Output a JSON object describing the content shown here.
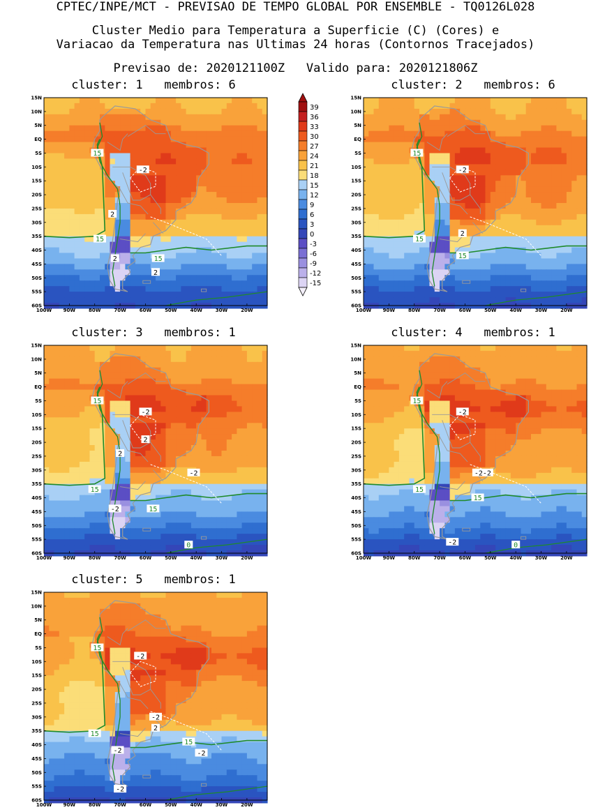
{
  "header": {
    "line1": "CPTEC/INPE/MCT - PREVISAO DE TEMPO GLOBAL POR ENSEMBLE - TQ0126L028",
    "line2": "Cluster Medio para Temperatura a Superficie (C) (Cores) e",
    "line3": "Variacao da Temperatura nas Ultimas 24 horas (Contornos Tracejados)",
    "line4": "Previsao de: 2020121100Z   Valido para: 2020121806Z"
  },
  "axes": {
    "lat_labels": [
      "15N",
      "10N",
      "5N",
      "EQ",
      "5S",
      "10S",
      "15S",
      "20S",
      "25S",
      "30S",
      "35S",
      "40S",
      "45S",
      "50S",
      "55S",
      "60S"
    ],
    "lon_labels": [
      "100W",
      "90W",
      "80W",
      "70W",
      "60W",
      "50W",
      "40W",
      "30W",
      "20W"
    ]
  },
  "colorbar": {
    "levels": [
      "39",
      "36",
      "33",
      "30",
      "27",
      "24",
      "21",
      "18",
      "15",
      "12",
      "9",
      "6",
      "3",
      "0",
      "-3",
      "-6",
      "-9",
      "-12",
      "-15"
    ],
    "colors": [
      "#a01010",
      "#c42020",
      "#e03a1a",
      "#ee5a1e",
      "#f57d2a",
      "#f9a23a",
      "#f9c24a",
      "#fbdd78",
      "#a9d0f5",
      "#78b2ee",
      "#4a8be0",
      "#2f6ed0",
      "#2a54c0",
      "#3446b8",
      "#5b4ec4",
      "#7a6fd4",
      "#9a90e0",
      "#bbb0ea",
      "#dcd4f4"
    ]
  },
  "colors": {
    "contour_green": "#1f8a2a",
    "map_outline": "#9a9a9a",
    "label_box": "#ffffff"
  },
  "panels": [
    {
      "title": "cluster: 1   membros: 6",
      "labels": [
        {
          "text": "15",
          "color": "green"
        },
        {
          "text": "-2",
          "color": "white"
        },
        {
          "text": "2",
          "color": "white"
        },
        {
          "text": "15",
          "color": "green"
        },
        {
          "text": "2",
          "color": "white"
        },
        {
          "text": "15",
          "color": "green"
        },
        {
          "text": "2",
          "color": "white"
        }
      ]
    },
    {
      "title": "cluster: 2   membros: 6",
      "labels": [
        {
          "text": "15",
          "color": "green"
        },
        {
          "text": "-2",
          "color": "white"
        },
        {
          "text": "15",
          "color": "green"
        },
        {
          "text": "2",
          "color": "white"
        },
        {
          "text": "15",
          "color": "green"
        }
      ]
    },
    {
      "title": "cluster: 3   membros: 1",
      "labels": [
        {
          "text": "15",
          "color": "green"
        },
        {
          "text": "-2",
          "color": "white"
        },
        {
          "text": "2",
          "color": "white"
        },
        {
          "text": "2",
          "color": "white"
        },
        {
          "text": "-2",
          "color": "white"
        },
        {
          "text": "15",
          "color": "green"
        },
        {
          "text": "-2",
          "color": "white"
        },
        {
          "text": "15",
          "color": "green"
        },
        {
          "text": "0",
          "color": "green"
        }
      ]
    },
    {
      "title": "cluster: 4   membros: 1",
      "labels": [
        {
          "text": "15",
          "color": "green"
        },
        {
          "text": "-2",
          "color": "white"
        },
        {
          "text": "15",
          "color": "green"
        },
        {
          "text": "-2-2",
          "color": "white"
        },
        {
          "text": "15",
          "color": "green"
        },
        {
          "text": "-2",
          "color": "white"
        },
        {
          "text": "0",
          "color": "green"
        }
      ]
    },
    {
      "title": "cluster: 5   membros: 1",
      "labels": [
        {
          "text": "15",
          "color": "green"
        },
        {
          "text": "-2",
          "color": "white"
        },
        {
          "text": "15",
          "color": "green"
        },
        {
          "text": "-2",
          "color": "white"
        },
        {
          "text": "2",
          "color": "white"
        },
        {
          "text": "15",
          "color": "green"
        },
        {
          "text": "-2",
          "color": "white"
        },
        {
          "text": "-2",
          "color": "white"
        },
        {
          "text": "-2",
          "color": "white"
        }
      ]
    }
  ]
}
